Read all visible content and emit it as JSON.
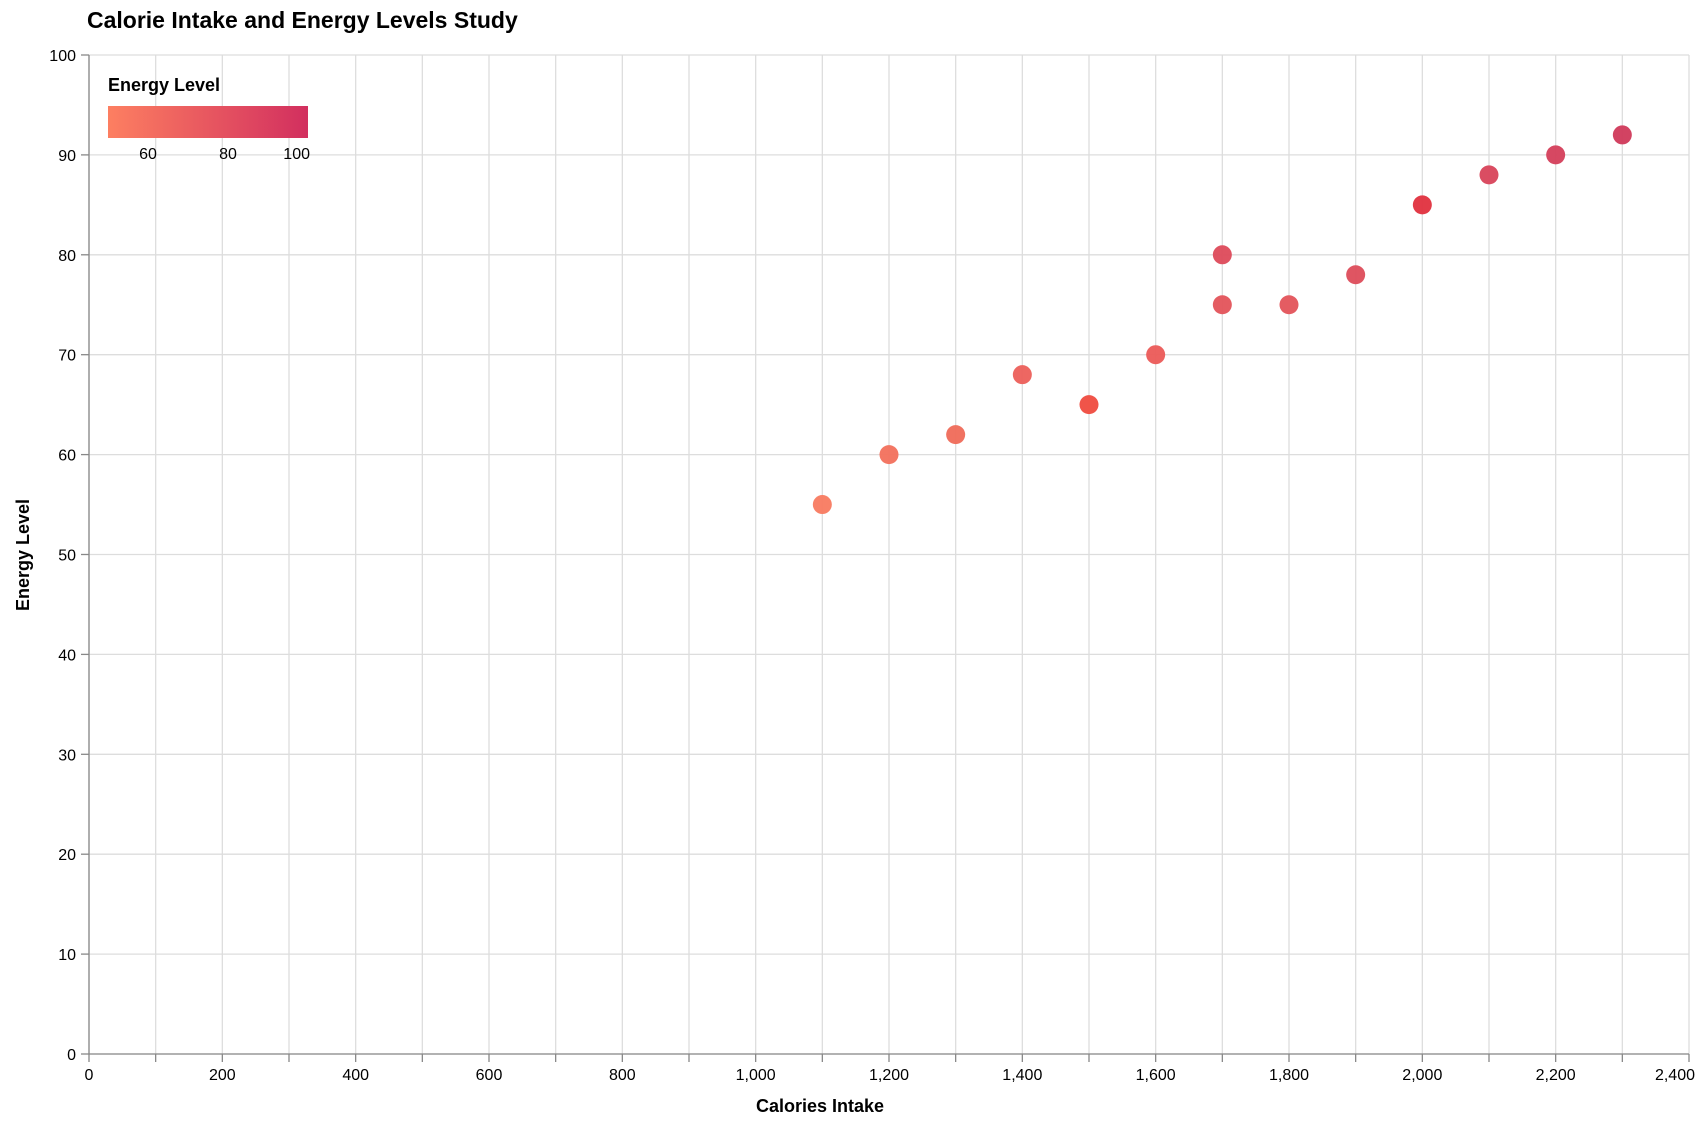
{
  "chart_data": {
    "type": "scatter",
    "title": "Calorie Intake and Energy Levels Study",
    "xlabel": "Calories Intake",
    "ylabel": "Energy Level",
    "xlim": [
      0,
      2400
    ],
    "ylim": [
      0,
      100
    ],
    "x_ticks": [
      0,
      100,
      200,
      300,
      400,
      500,
      600,
      700,
      800,
      900,
      1000,
      1100,
      1200,
      1300,
      1400,
      1500,
      1600,
      1700,
      1800,
      1900,
      2000,
      2100,
      2200,
      2300,
      2400
    ],
    "x_tick_labels": [
      {
        "value": 0,
        "label": "0"
      },
      {
        "value": 200,
        "label": "200"
      },
      {
        "value": 400,
        "label": "400"
      },
      {
        "value": 600,
        "label": "600"
      },
      {
        "value": 800,
        "label": "800"
      },
      {
        "value": 1000,
        "label": "1,000"
      },
      {
        "value": 1200,
        "label": "1,200"
      },
      {
        "value": 1400,
        "label": "1,400"
      },
      {
        "value": 1600,
        "label": "1,600"
      },
      {
        "value": 1800,
        "label": "1,800"
      },
      {
        "value": 2000,
        "label": "2,000"
      },
      {
        "value": 2200,
        "label": "2,200"
      },
      {
        "value": 2400,
        "label": "2,400"
      }
    ],
    "y_ticks": [
      0,
      10,
      20,
      30,
      40,
      50,
      60,
      70,
      80,
      90,
      100
    ],
    "y_tick_labels": [
      {
        "value": 0,
        "label": "0"
      },
      {
        "value": 10,
        "label": "10"
      },
      {
        "value": 20,
        "label": "20"
      },
      {
        "value": 30,
        "label": "30"
      },
      {
        "value": 40,
        "label": "40"
      },
      {
        "value": 50,
        "label": "50"
      },
      {
        "value": 60,
        "label": "60"
      },
      {
        "value": 70,
        "label": "70"
      },
      {
        "value": 80,
        "label": "80"
      },
      {
        "value": 90,
        "label": "90"
      },
      {
        "value": 100,
        "label": "100"
      }
    ],
    "grid": true,
    "points": [
      {
        "x": 1100,
        "y": 55
      },
      {
        "x": 1200,
        "y": 60
      },
      {
        "x": 1300,
        "y": 62
      },
      {
        "x": 1400,
        "y": 68
      },
      {
        "x": 1500,
        "y": 65
      },
      {
        "x": 1600,
        "y": 70
      },
      {
        "x": 1700,
        "y": 80
      },
      {
        "x": 1700,
        "y": 75
      },
      {
        "x": 1800,
        "y": 75
      },
      {
        "x": 1900,
        "y": 78
      },
      {
        "x": 2000,
        "y": 85
      },
      {
        "x": 2100,
        "y": 88
      },
      {
        "x": 2200,
        "y": 90
      },
      {
        "x": 2300,
        "y": 92
      }
    ],
    "point_colors": [
      "#f87a60",
      "#f2705c",
      "#ef6a59",
      "#ec5f5a",
      "#ef4b3f",
      "#eb5a57",
      "#dd4a5a",
      "#e3535a",
      "#e3535a",
      "#dd4c5a",
      "#e0303e",
      "#d8435a",
      "#d43e5a",
      "#d0395a"
    ],
    "legend": {
      "title": "Energy Level",
      "placement": "top-left",
      "domain": [
        50,
        100
      ],
      "ticks": [
        {
          "value": 60,
          "label": "60"
        },
        {
          "value": 80,
          "label": "80"
        },
        {
          "value": 100,
          "label": "100"
        }
      ],
      "gradient_start": "#fd7f61",
      "gradient_end": "#d22f5f"
    }
  }
}
